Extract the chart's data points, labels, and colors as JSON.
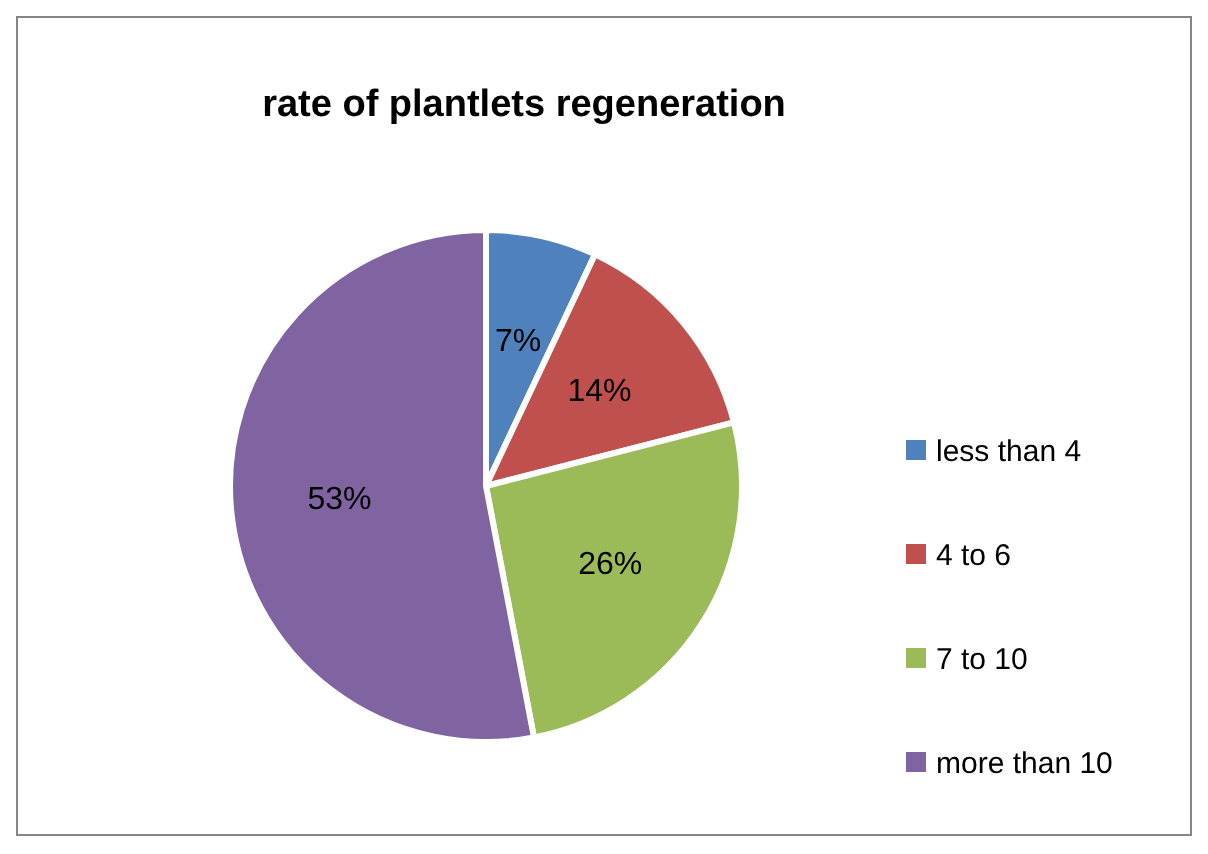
{
  "chart_data": {
    "type": "pie",
    "title": "rate of plantlets regeneration",
    "categories": [
      "less than 4",
      "4 to 6",
      "7 to 10",
      "more than 10"
    ],
    "values": [
      7,
      14,
      26,
      53
    ],
    "colors": [
      "#4f81bd",
      "#c0504d",
      "#9bbb59",
      "#8064a2"
    ],
    "value_labels": [
      "7%",
      "14%",
      "26%",
      "53%"
    ],
    "legend": "right"
  }
}
